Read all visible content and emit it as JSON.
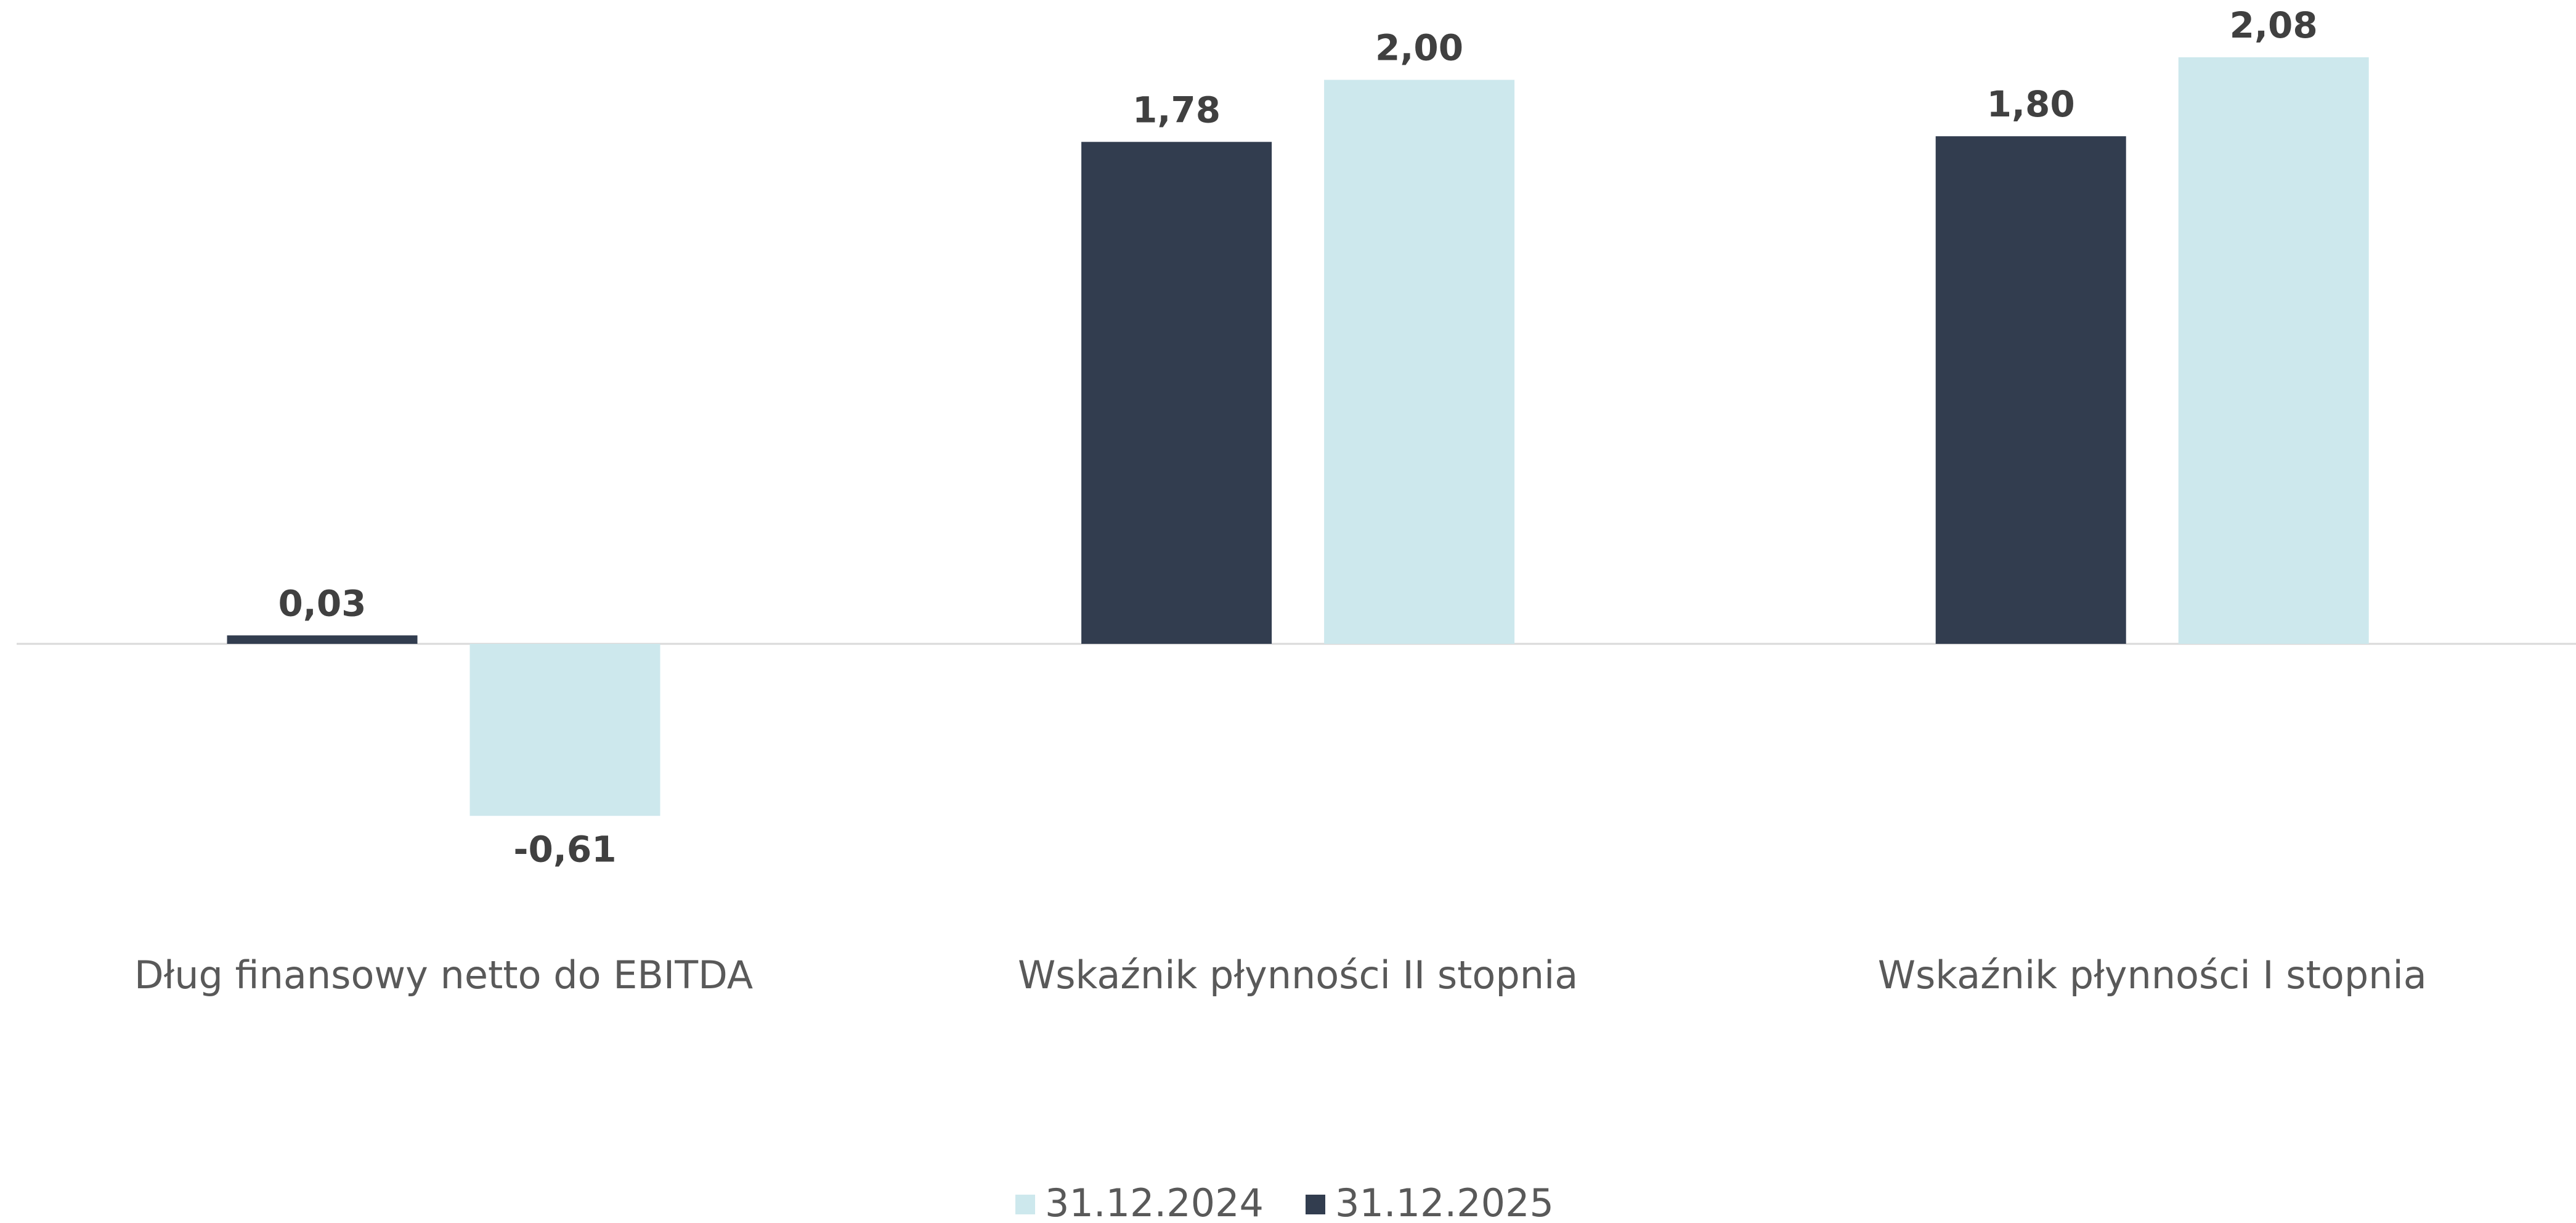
{
  "chart_data": {
    "type": "bar",
    "categories": [
      "Dług finansowy netto do EBITDA",
      "Wskaźnik płynności II stopnia",
      "Wskaźnik płynności I stopnia"
    ],
    "series": [
      {
        "name": "31.12.2024",
        "color": "#cde8ed",
        "values": [
          -0.61,
          2.0,
          2.08
        ],
        "value_labels": [
          "-0,61",
          "2,00",
          "2,08"
        ]
      },
      {
        "name": "31.12.2025",
        "color": "#323d4f",
        "values": [
          0.03,
          1.78,
          1.8
        ],
        "value_labels": [
          "0,03",
          "1,78",
          "1,80"
        ]
      }
    ]
  }
}
